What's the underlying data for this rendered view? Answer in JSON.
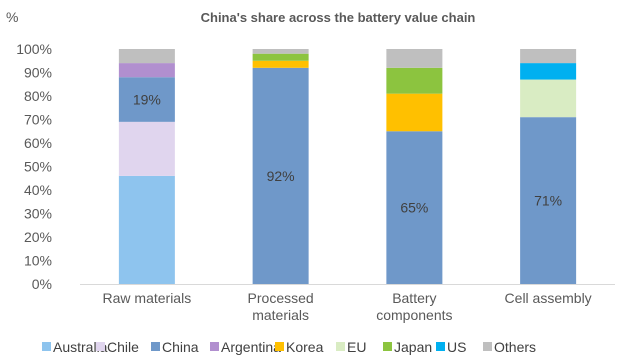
{
  "chart_data": {
    "type": "bar",
    "stacked": true,
    "title": "China's share across the battery value chain",
    "ylabel": "%",
    "ylim": [
      0,
      100
    ],
    "y_ticks": [
      "0%",
      "10%",
      "20%",
      "30%",
      "40%",
      "50%",
      "60%",
      "70%",
      "80%",
      "90%",
      "100%"
    ],
    "grid": false,
    "legend_position": "bottom",
    "categories": [
      [
        "Raw materials"
      ],
      [
        "Processed",
        "materials"
      ],
      [
        "Battery",
        "components"
      ],
      [
        "Cell assembly"
      ]
    ],
    "series": [
      {
        "name": "Australia",
        "color": "#8ec4ee",
        "values": [
          46,
          0,
          0,
          0
        ]
      },
      {
        "name": "Chile",
        "color": "#e0d5ee",
        "values": [
          23,
          0,
          0,
          0
        ]
      },
      {
        "name": "China",
        "color": "#6f98c9",
        "values": [
          19,
          92,
          65,
          71
        ]
      },
      {
        "name": "Argentina",
        "color": "#b18fcf",
        "values": [
          6,
          0,
          0,
          0
        ]
      },
      {
        "name": "Korea",
        "color": "#ffc000",
        "values": [
          0,
          3,
          16,
          0
        ]
      },
      {
        "name": "EU",
        "color": "#d9ecc3",
        "values": [
          0,
          0,
          0,
          16
        ]
      },
      {
        "name": "Japan",
        "color": "#8cc43f",
        "values": [
          0,
          3,
          11,
          0
        ]
      },
      {
        "name": "US",
        "color": "#00b0f0",
        "values": [
          0,
          0,
          0,
          7
        ]
      },
      {
        "name": "Others",
        "color": "#bfbfbf",
        "values": [
          6,
          2,
          8,
          6
        ]
      }
    ],
    "data_labels": [
      {
        "category_index": 0,
        "series": "China",
        "text": "19%"
      },
      {
        "category_index": 1,
        "series": "China",
        "text": "92%"
      },
      {
        "category_index": 2,
        "series": "China",
        "text": "65%"
      },
      {
        "category_index": 3,
        "series": "China",
        "text": "71%"
      }
    ]
  }
}
